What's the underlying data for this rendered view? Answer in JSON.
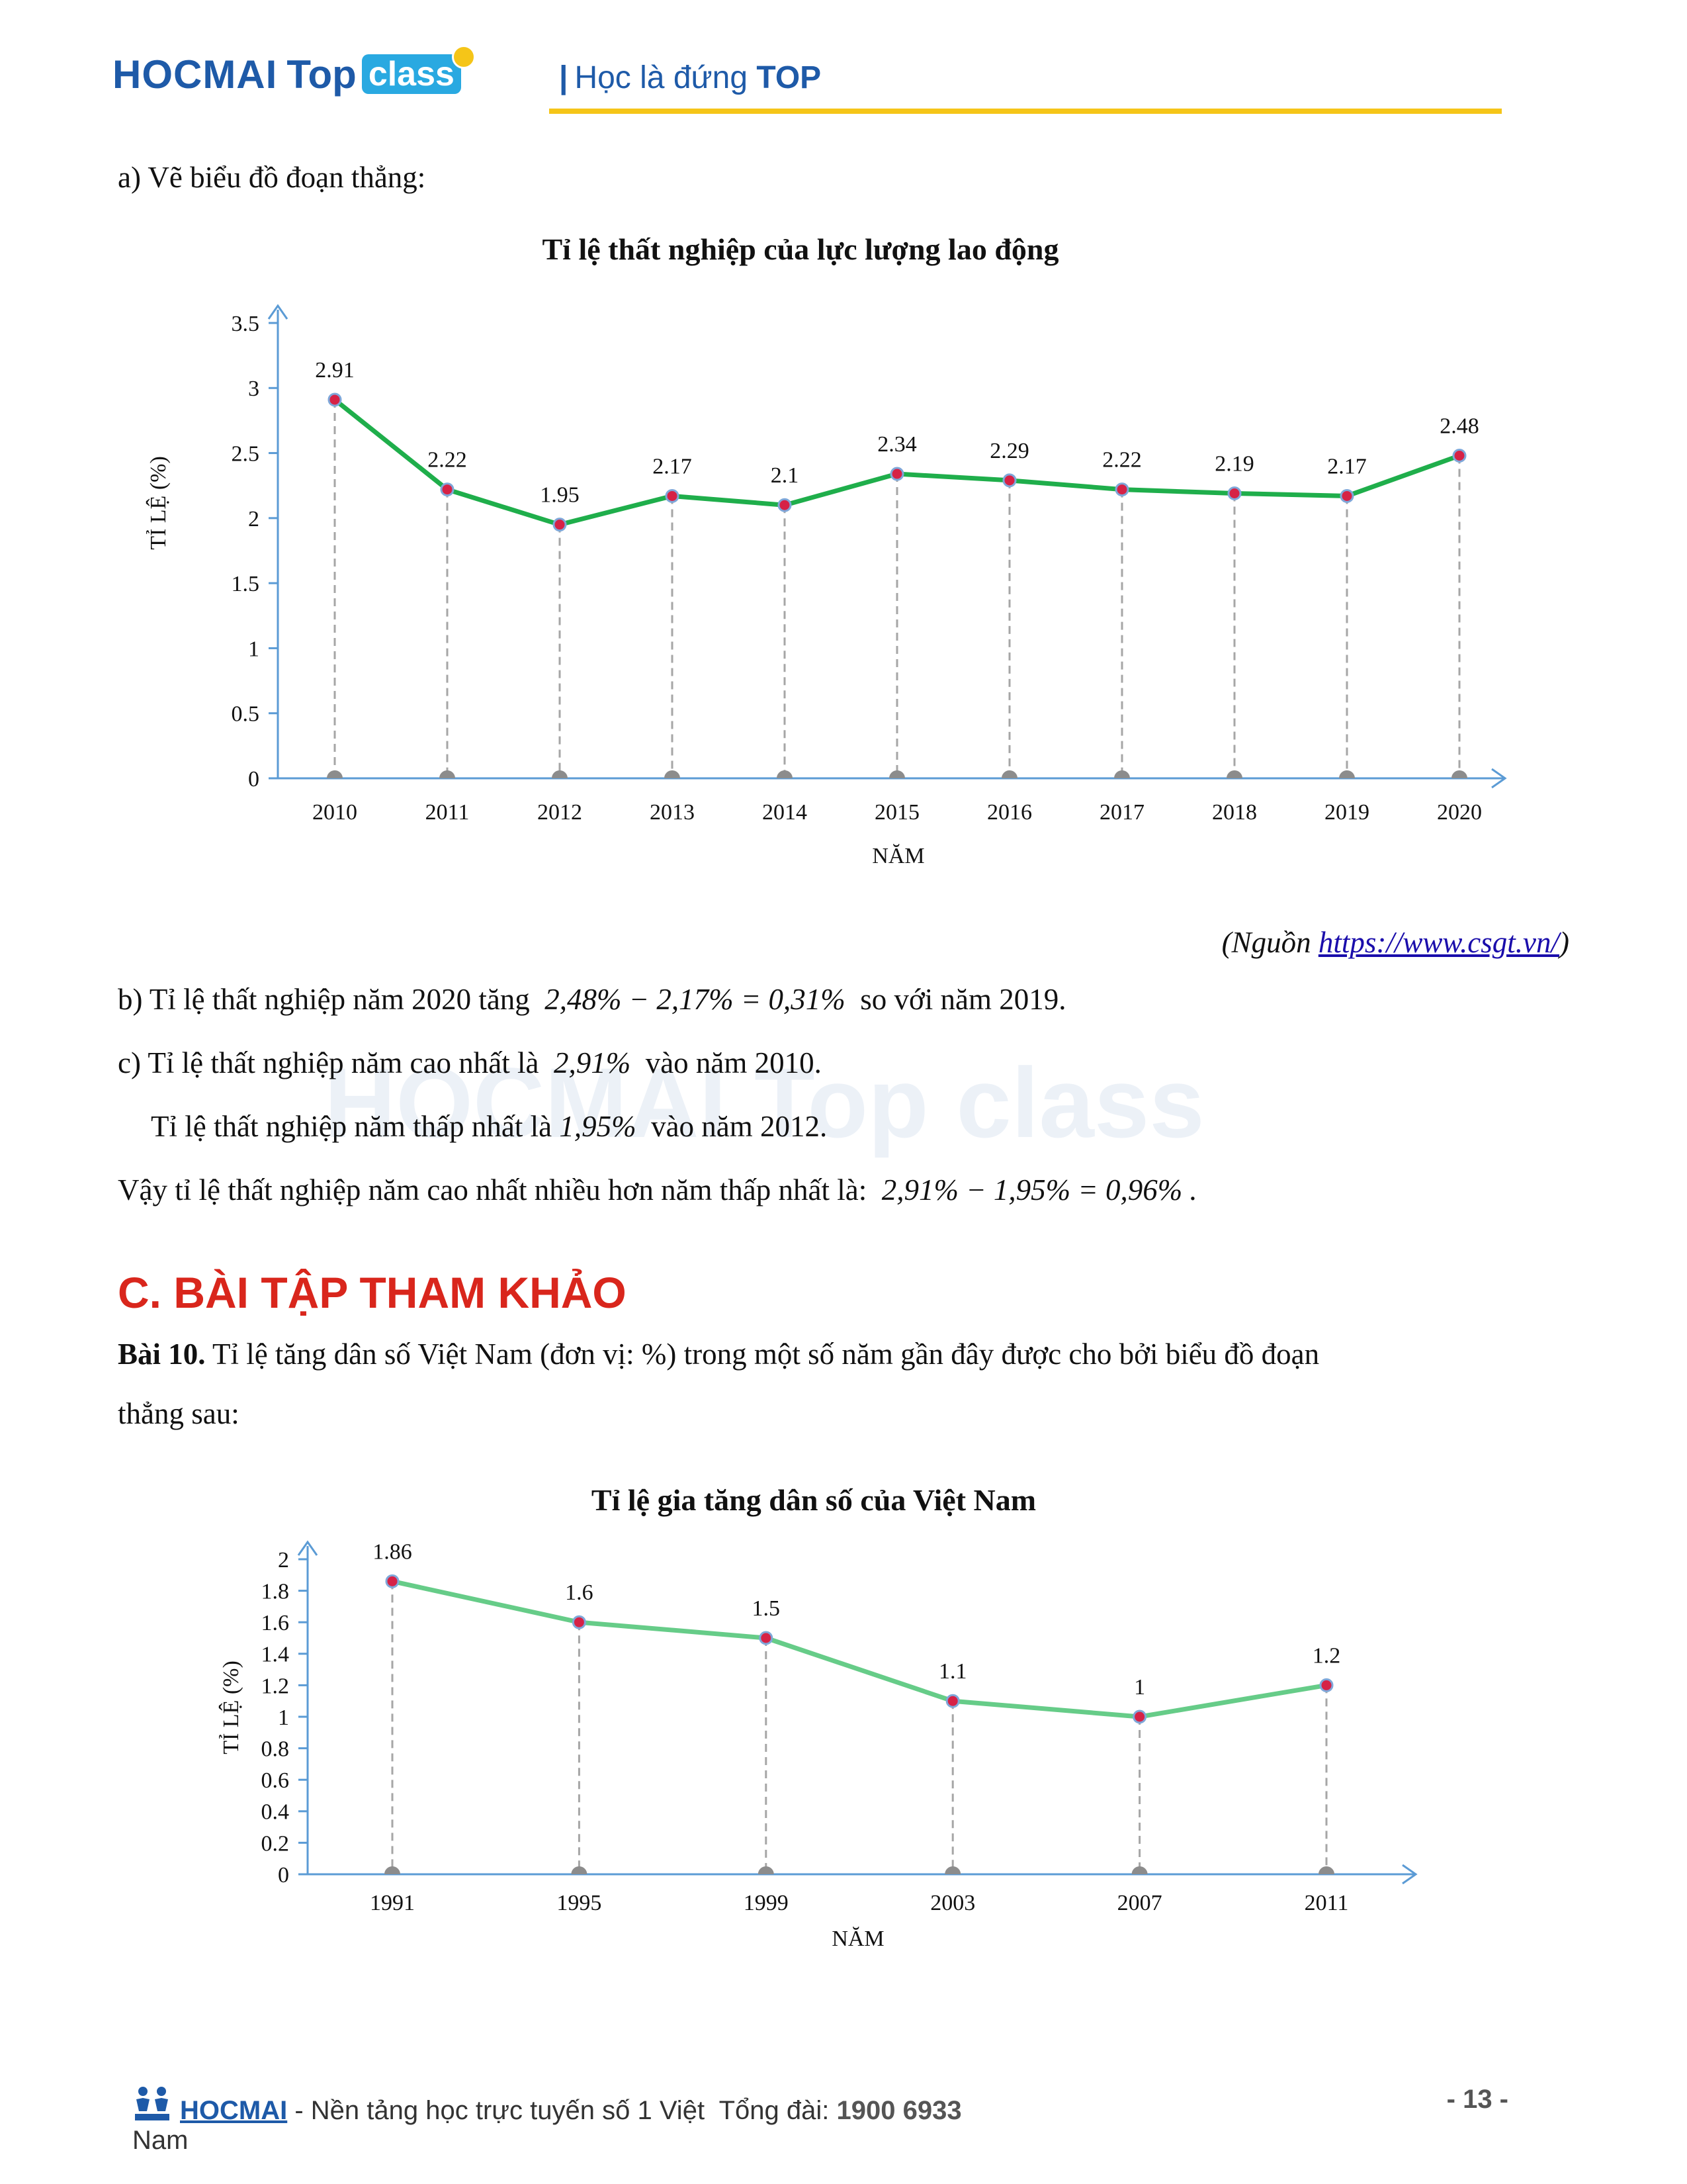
{
  "header": {
    "brand": "HOCMAI",
    "brand_top": "Top",
    "brand_class": "class",
    "tagline_prefix": "Học là đứng",
    "tagline_bold": "TOP"
  },
  "content": {
    "part_a": "a) Vẽ biểu đồ đoạn thẳng:",
    "source_prefix": "(Nguồn ",
    "source_link": "https://www.csgt.vn/",
    "source_suffix": ")",
    "part_b_text": "b) Tỉ lệ thất nghiệp năm 2020 tăng",
    "part_b_math": "2,48% − 2,17% = 0,31%",
    "part_b_tail": "so với năm 2019.",
    "part_c_text": "c) Tỉ lệ thất nghiệp năm cao nhất là",
    "part_c_math": "2,91%",
    "part_c_tail": "vào năm 2010.",
    "part_c2_text": "Tỉ lệ thất nghiệp năm thấp nhất là",
    "part_c2_math": "1,95%",
    "part_c2_tail": "vào năm 2012.",
    "part_c3_text": "Vậy tỉ lệ thất nghiệp năm cao nhất nhiều hơn năm thấp nhất là:",
    "part_c3_math": "2,91% − 1,95% = 0,96% .",
    "section_heading": "C. BÀI TẬP THAM KHẢO",
    "bai10_label": "Bài 10.",
    "bai10_text": "Tỉ lệ tăng dân số Việt Nam (đơn vị: %)  trong một số năm gần đây được cho bởi biểu đồ đoạn",
    "bai10_text2": "thẳng sau:"
  },
  "watermark": "HOCMAI Top class",
  "chart_data": [
    {
      "type": "line",
      "title": "Tỉ lệ thất nghiệp của lực lượng lao động",
      "xlabel": "NĂM",
      "ylabel": "TỈ LỆ (%)",
      "categories": [
        "2010",
        "2011",
        "2012",
        "2013",
        "2014",
        "2015",
        "2016",
        "2017",
        "2018",
        "2019",
        "2020"
      ],
      "values": [
        2.91,
        2.22,
        1.95,
        2.17,
        2.1,
        2.34,
        2.29,
        2.22,
        2.19,
        2.17,
        2.48
      ],
      "data_labels": [
        "2.91",
        "2.22",
        "1.95",
        "2.17",
        "2.1",
        "2.34",
        "2.29",
        "2.22",
        "2.19",
        "2.17",
        "2.48"
      ],
      "yticks": [
        "0",
        "0.5",
        "1",
        "1.5",
        "2",
        "2.5",
        "3",
        "3.5"
      ],
      "ylim": [
        0,
        3.5
      ],
      "line_color": "#1fae4b",
      "grid": false
    },
    {
      "type": "line",
      "title": "Tỉ lệ gia tăng dân số của Việt Nam",
      "xlabel": "NĂM",
      "ylabel": "TỈ LỆ (%)",
      "categories": [
        "1991",
        "1995",
        "1999",
        "2003",
        "2007",
        "2011"
      ],
      "values": [
        1.86,
        1.6,
        1.5,
        1.1,
        1,
        1.2
      ],
      "data_labels": [
        "1.86",
        "1.6",
        "1.5",
        "1.1",
        "1",
        "1.2"
      ],
      "yticks": [
        "0",
        "0.2",
        "0.4",
        "0.6",
        "0.8",
        "1",
        "1.2",
        "1.4",
        "1.6",
        "1.8",
        "2"
      ],
      "ylim": [
        0,
        2
      ],
      "line_color": "#66cc88",
      "grid": false
    }
  ],
  "footer": {
    "brand": "HOCMAI",
    "text": "- Nền tảng học trực tuyến số 1 Việt",
    "hotline_label": "Tổng đài:",
    "hotline": "1900 6933",
    "page": "- 13 -",
    "text_cont": "Nam"
  }
}
